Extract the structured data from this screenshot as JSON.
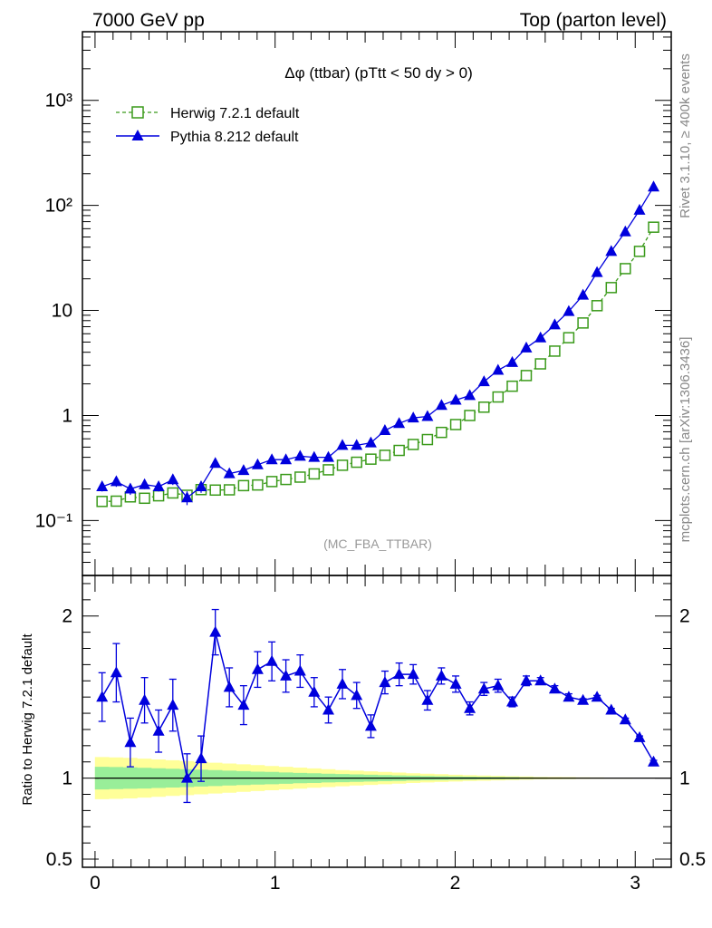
{
  "header": {
    "left": "7000 GeV pp",
    "right": "Top (parton level)"
  },
  "side_text": {
    "rivet": "Rivet 3.1.10, ≥ 400k events",
    "source": "mcplots.cern.ch [arXiv:1306.3436]"
  },
  "chart_data": {
    "type": "line",
    "title": "Δφ (ttbar) (pTtt < 50 dy > 0)",
    "watermark": "(MC_FBA_TTBAR)",
    "x": [
      0.039,
      0.118,
      0.196,
      0.275,
      0.353,
      0.432,
      0.511,
      0.589,
      0.668,
      0.746,
      0.825,
      0.903,
      0.982,
      1.06,
      1.139,
      1.217,
      1.296,
      1.374,
      1.453,
      1.532,
      1.61,
      1.689,
      1.767,
      1.846,
      1.924,
      2.003,
      2.081,
      2.16,
      2.238,
      2.317,
      2.395,
      2.474,
      2.553,
      2.631,
      2.71,
      2.788,
      2.867,
      2.945,
      3.024,
      3.102
    ],
    "main": {
      "yscale": "log",
      "ylim": [
        0.03,
        4500
      ],
      "yticks": [
        {
          "value": 0.1,
          "label": "10⁻¹"
        },
        {
          "value": 1,
          "label": "1"
        },
        {
          "value": 10,
          "label": "10"
        },
        {
          "value": 100,
          "label": "10²"
        },
        {
          "value": 1000,
          "label": "10³"
        }
      ]
    },
    "ratio": {
      "ylabel": "Ratio to Herwig 7.2.1 default",
      "ylim": [
        0.45,
        2.25
      ],
      "yticks": [
        {
          "value": 0.5,
          "label": "0.5"
        },
        {
          "value": 1,
          "label": "1"
        },
        {
          "value": 2,
          "label": "2"
        }
      ],
      "values": [
        1.5,
        1.65,
        1.22,
        1.48,
        1.29,
        1.45,
        1.0,
        1.12,
        1.9,
        1.56,
        1.45,
        1.67,
        1.72,
        1.63,
        1.66,
        1.53,
        1.42,
        1.58,
        1.51,
        1.32,
        1.59,
        1.64,
        1.64,
        1.48,
        1.63,
        1.58,
        1.43,
        1.55,
        1.57,
        1.47,
        1.6,
        1.6,
        1.55,
        1.5,
        1.48,
        1.5,
        1.42,
        1.36,
        1.25,
        1.1
      ],
      "errors": [
        0.15,
        0.18,
        0.15,
        0.14,
        0.13,
        0.16,
        0.15,
        0.14,
        0.14,
        0.12,
        0.12,
        0.11,
        0.12,
        0.1,
        0.1,
        0.09,
        0.08,
        0.09,
        0.08,
        0.07,
        0.07,
        0.07,
        0.06,
        0.06,
        0.05,
        0.05,
        0.04,
        0.04,
        0.04,
        0.03,
        0.03,
        0.02,
        0.02,
        0.02,
        0.01,
        0.01,
        0.01,
        0.01,
        0.01,
        0.01
      ],
      "band_yellow": [
        0.13,
        0.128,
        0.125,
        0.12,
        0.115,
        0.11,
        0.105,
        0.1,
        0.095,
        0.09,
        0.085,
        0.08,
        0.075,
        0.07,
        0.065,
        0.06,
        0.055,
        0.05,
        0.046,
        0.042,
        0.038,
        0.034,
        0.03,
        0.027,
        0.024,
        0.021,
        0.018,
        0.016,
        0.014,
        0.012,
        0.01,
        0.008,
        0.007,
        0.006,
        0.005,
        0.004,
        0.003,
        0.003,
        0.002,
        0.002
      ],
      "band_green": [
        0.07,
        0.068,
        0.066,
        0.064,
        0.061,
        0.058,
        0.055,
        0.052,
        0.049,
        0.046,
        0.043,
        0.04,
        0.038,
        0.035,
        0.032,
        0.03,
        0.027,
        0.025,
        0.023,
        0.021,
        0.019,
        0.017,
        0.015,
        0.013,
        0.012,
        0.01,
        0.009,
        0.008,
        0.007,
        0.006,
        0.005,
        0.004,
        0.003,
        0.003,
        0.002,
        0.002,
        0.002,
        0.001,
        0.001,
        0.001
      ]
    },
    "xlim": [
      -0.07,
      3.2
    ],
    "xticks": [
      {
        "value": 0,
        "label": "0"
      },
      {
        "value": 1,
        "label": "1"
      },
      {
        "value": 2,
        "label": "2"
      },
      {
        "value": 3,
        "label": "3"
      }
    ],
    "legend_position": "top-left",
    "series": [
      {
        "name": "Herwig 7.2.1 default",
        "color": "#3a9a1a",
        "marker": "open-square",
        "line": "dashed",
        "values": [
          0.152,
          0.153,
          0.168,
          0.163,
          0.172,
          0.183,
          0.174,
          0.197,
          0.195,
          0.196,
          0.215,
          0.218,
          0.235,
          0.246,
          0.259,
          0.278,
          0.304,
          0.336,
          0.359,
          0.384,
          0.418,
          0.465,
          0.53,
          0.59,
          0.69,
          0.82,
          1.0,
          1.2,
          1.5,
          1.9,
          2.4,
          3.1,
          4.1,
          5.5,
          7.6,
          11.1,
          16.5,
          25.0,
          36.5,
          62.0
        ]
      },
      {
        "name": "Pythia 8.212 default",
        "color": "#0000dd",
        "marker": "filled-triangle",
        "line": "solid",
        "values": [
          0.21,
          0.235,
          0.2,
          0.22,
          0.21,
          0.245,
          0.165,
          0.21,
          0.35,
          0.28,
          0.3,
          0.34,
          0.38,
          0.38,
          0.41,
          0.4,
          0.4,
          0.52,
          0.52,
          0.55,
          0.72,
          0.84,
          0.95,
          0.98,
          1.25,
          1.4,
          1.55,
          2.1,
          2.7,
          3.2,
          4.4,
          5.5,
          7.3,
          9.8,
          14.0,
          23.0,
          36.5,
          56.0,
          90.0,
          150.0
        ]
      }
    ]
  }
}
